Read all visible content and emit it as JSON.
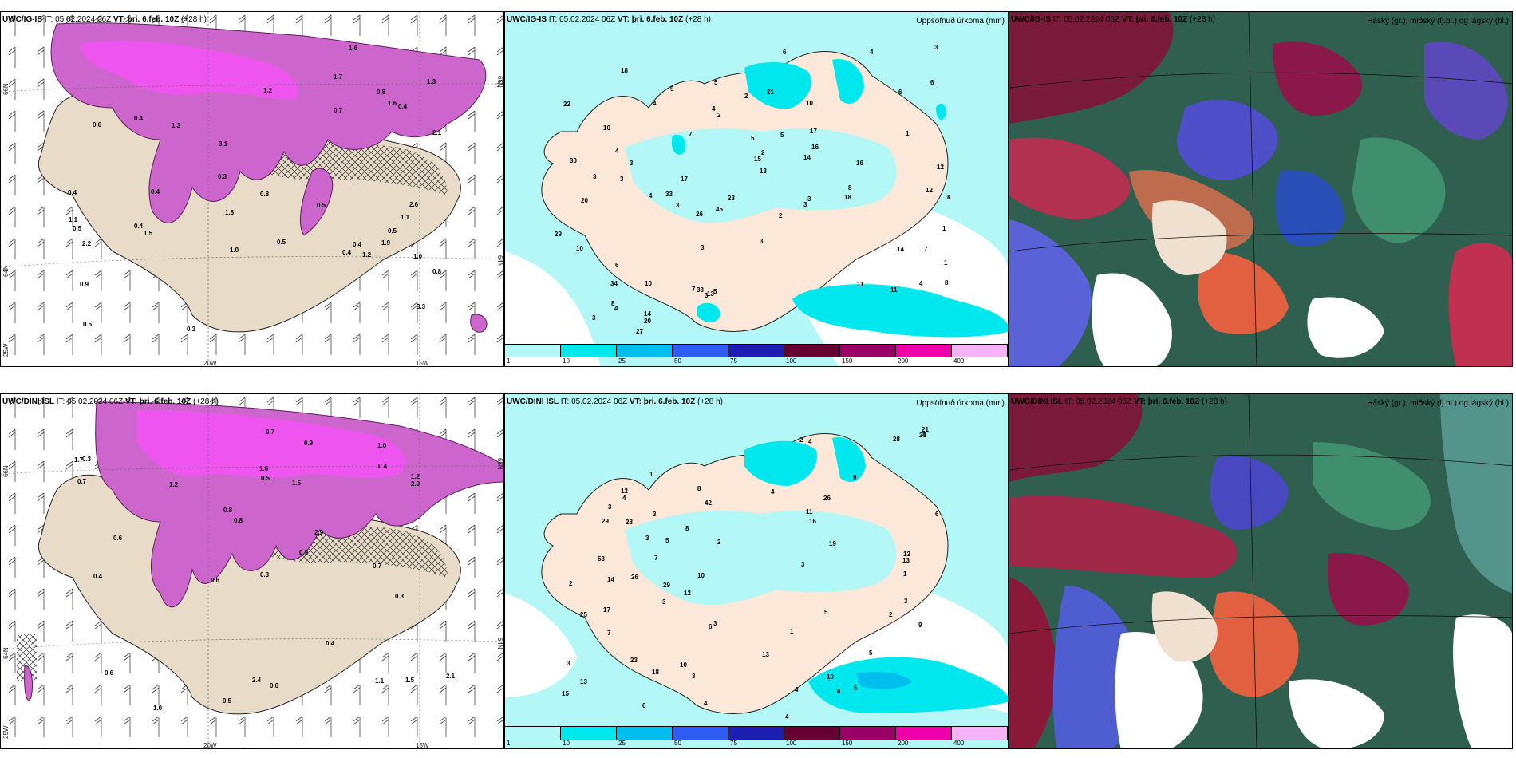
{
  "panels": [
    {
      "model": "UWC/IG-IS",
      "it": "IT: 05.02.2024 06Z",
      "vt": "VT: þri. 6.feb. 10Z",
      "lead": "(+28 h)",
      "right": ""
    },
    {
      "model": "UWC/IG-IS",
      "it": "IT: 05.02.2024 06Z",
      "vt": "VT: þri. 6.feb. 10Z",
      "lead": "(+28 h)",
      "right": "Uppsöfnuð úrkoma (mm)"
    },
    {
      "model": "UWC/IG-IS",
      "it": "IT: 05.02.2024 06Z",
      "vt": "VT: þri. 6.feb. 10Z",
      "lead": "(+28 h)",
      "right": "Háský (gr.), miðský (fj.bl.) og lágský (bl.)"
    },
    {
      "model": "UWC/DINI ISL",
      "it": "IT: 05.02.2024 06Z",
      "vt": "VT: þri. 6.feb. 10Z",
      "lead": "(+28 h)",
      "right": ""
    },
    {
      "model": "UWC/DINI ISL",
      "it": "IT: 05.02.2024 06Z",
      "vt": "VT: þri. 6.feb. 10Z",
      "lead": "(+28 h)",
      "right": "Uppsöfnuð úrkoma (mm)"
    },
    {
      "model": "UWC/DINI ISL",
      "it": "IT: 05.02.2024 06Z",
      "vt": "VT: þri. 6.feb. 10Z",
      "lead": "(+28 h)",
      "right": "Háský (gr.), miðský (fj.bl.) og lágský (bl.)"
    }
  ],
  "coords": {
    "lat66": "66N",
    "lat64": "64N",
    "lon25": "25W",
    "lon20": "20W",
    "lon15": "15W",
    "lat66r": "66N",
    "lat64r": "64N"
  },
  "colorbar": {
    "labels": [
      "1",
      "10",
      "25",
      "50",
      "75",
      "100",
      "150",
      "200",
      "400"
    ],
    "colors": [
      "#b3f7f7",
      "#00e8ee",
      "#00bfee",
      "#2e5cf5",
      "#1d1db2",
      "#660033",
      "#990066",
      "#ee00aa",
      "#f5b3f5"
    ]
  },
  "precip_values_top": [
    "1",
    "1",
    "6",
    "3",
    "7",
    "10",
    "14",
    "27",
    "33",
    "15",
    "34",
    "23",
    "33",
    "20",
    "22",
    "16",
    "17",
    "13",
    "30",
    "14",
    "11",
    "21",
    "10",
    "8",
    "6",
    "7",
    "5",
    "5",
    "20",
    "18",
    "14",
    "3",
    "3",
    "3",
    "9",
    "7",
    "6",
    "8",
    "2",
    "3",
    "8",
    "4",
    "3",
    "4",
    "3",
    "4",
    "1",
    "5",
    "2",
    "4",
    "3",
    "2",
    "12",
    "12",
    "26",
    "18",
    "17",
    "45",
    "13",
    "11",
    "29",
    "3",
    "16",
    "2",
    "4",
    "10",
    "3",
    "6",
    "10",
    "5",
    "4",
    "4",
    "3",
    "8"
  ],
  "precip_values_bottom": [
    "6",
    "3",
    "7",
    "10",
    "13",
    "29",
    "23",
    "29",
    "28",
    "18",
    "19",
    "26",
    "28",
    "21",
    "16",
    "12",
    "14",
    "13",
    "15",
    "26",
    "4",
    "1",
    "1",
    "8",
    "42",
    "25",
    "53",
    "6",
    "4",
    "13",
    "21",
    "5",
    "17",
    "3",
    "9",
    "2",
    "10",
    "3",
    "12",
    "12",
    "4",
    "1",
    "3",
    "5",
    "2",
    "2",
    "3",
    "4",
    "8",
    "7",
    "3",
    "3",
    "10",
    "4",
    "5",
    "5",
    "3",
    "2",
    "3",
    "6",
    "9",
    "6",
    "11",
    "4",
    "8"
  ],
  "cloud_values_top": [
    "0.4",
    "0.4",
    "1.1",
    "1.5",
    "1.3",
    "0.4",
    "1.6",
    "2.6",
    "3.1",
    "3.3",
    "2.1",
    "1.6",
    "2.2",
    "1.0",
    "0.8",
    "0.5",
    "1.7",
    "0.5",
    "0.7",
    "0.9",
    "0.4",
    "0.5",
    "0.4",
    "0.3",
    "1.3",
    "1.8",
    "1.9",
    "0.3",
    "0.6",
    "1.2",
    "0.8",
    "0.4",
    "1.2",
    "0.8",
    "0.5",
    "1.0",
    "1.1",
    "0.5",
    "0.4"
  ],
  "cloud_values_bottom": [
    "0.6",
    "0.6",
    "0.7",
    "1.0",
    "1.5",
    "1.0",
    "0.3",
    "1.1",
    "2.1",
    "2.9",
    "2.4",
    "1.5",
    "1.2",
    "1.2",
    "0.8",
    "0.6",
    "0.5",
    "0.7",
    "0.4",
    "1.6",
    "1.7",
    "2.0",
    "0.9",
    "0.3",
    "0.4",
    "0.6",
    "0.7",
    "0.9",
    "0.8",
    "0.5",
    "0.4",
    "0.3"
  ]
}
